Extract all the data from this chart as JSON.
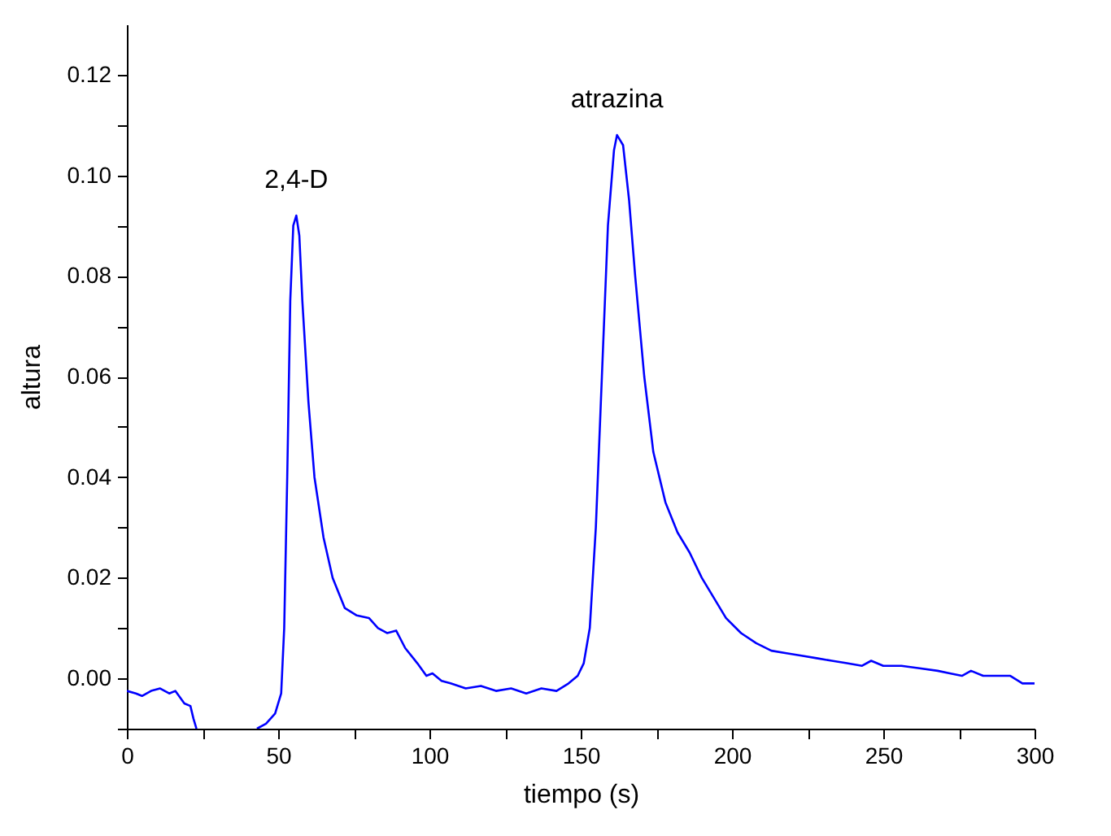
{
  "chart_data": {
    "type": "line",
    "xlabel": "tiempo (s)",
    "ylabel": "altura",
    "x": [
      0,
      3,
      5,
      8,
      11,
      14,
      16,
      19,
      21,
      22,
      23,
      30,
      43,
      46,
      49,
      51,
      52,
      53,
      54,
      55,
      56,
      57,
      58,
      60,
      62,
      65,
      68,
      72,
      76,
      80,
      83,
      86,
      89,
      92,
      96,
      99,
      101,
      104,
      107,
      112,
      117,
      122,
      127,
      132,
      137,
      142,
      146,
      149,
      151,
      153,
      155,
      157,
      159,
      161,
      162,
      164,
      166,
      168,
      171,
      174,
      178,
      182,
      186,
      190,
      194,
      198,
      203,
      208,
      213,
      218,
      223,
      228,
      233,
      238,
      243,
      246,
      250,
      256,
      262,
      268,
      272,
      276,
      279,
      283,
      288,
      292,
      296,
      300
    ],
    "series": [
      {
        "color": "#0000ff",
        "values": [
          -0.0025,
          -0.003,
          -0.0035,
          -0.0025,
          -0.002,
          -0.003,
          -0.0025,
          -0.005,
          -0.0055,
          -0.008,
          -0.01,
          null,
          -0.01,
          -0.009,
          -0.007,
          -0.003,
          0.01,
          0.04,
          0.075,
          0.09,
          0.092,
          0.088,
          0.075,
          0.055,
          0.04,
          0.028,
          0.02,
          0.014,
          0.0125,
          0.012,
          0.01,
          0.009,
          0.0095,
          0.006,
          0.003,
          0.0005,
          0.001,
          -0.0005,
          -0.001,
          -0.002,
          -0.0015,
          -0.0025,
          -0.002,
          -0.003,
          -0.002,
          -0.0025,
          -0.001,
          0.0005,
          0.003,
          0.01,
          0.03,
          0.06,
          0.09,
          0.105,
          0.108,
          0.106,
          0.095,
          0.08,
          0.06,
          0.045,
          0.035,
          0.029,
          0.025,
          0.02,
          0.016,
          0.012,
          0.009,
          0.007,
          0.0055,
          0.005,
          0.0045,
          0.004,
          0.0035,
          0.003,
          0.0025,
          0.0035,
          0.0025,
          0.0025,
          0.002,
          0.0015,
          0.001,
          0.0005,
          0.0015,
          0.0005,
          0.0005,
          0.0005,
          -0.001,
          -0.001
        ]
      }
    ],
    "xlim": [
      0,
      300
    ],
    "ylim": [
      -0.01,
      0.13
    ],
    "xticks": [
      0,
      {
        "value": 25,
        "label": null
      },
      50,
      {
        "value": 75,
        "label": null
      },
      100,
      {
        "value": 125,
        "label": null
      },
      150,
      {
        "value": 175,
        "label": null
      },
      200,
      {
        "value": 225,
        "label": null
      },
      250,
      {
        "value": 275,
        "label": null
      },
      300
    ],
    "yticks": [
      {
        "value": -0.01,
        "label": null
      },
      {
        "value": 0,
        "label": "0.00"
      },
      {
        "value": 0.01,
        "label": null
      },
      {
        "value": 0.02,
        "label": "0.02"
      },
      {
        "value": 0.03,
        "label": null
      },
      {
        "value": 0.04,
        "label": "0.04"
      },
      {
        "value": 0.05,
        "label": null
      },
      {
        "value": 0.06,
        "label": "0.06"
      },
      {
        "value": 0.07,
        "label": null
      },
      {
        "value": 0.08,
        "label": "0.08"
      },
      {
        "value": 0.09,
        "label": null
      },
      {
        "value": 0.1,
        "label": "0.10"
      },
      {
        "value": 0.11,
        "label": null
      },
      {
        "value": 0.12,
        "label": "0.12"
      }
    ],
    "annotations": [
      {
        "text": "2,4-D",
        "x": 56,
        "y": 0.092
      },
      {
        "text": "atrazina",
        "x": 162,
        "y": 0.108
      }
    ],
    "grid": false,
    "legend": false,
    "marker": "none",
    "line_style": "solid"
  }
}
